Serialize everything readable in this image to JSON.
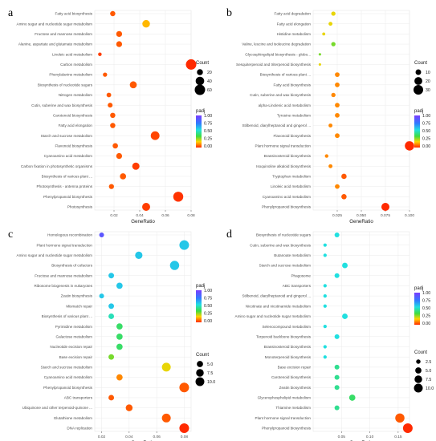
{
  "panels_label": [
    "a",
    "b",
    "c",
    "d"
  ],
  "legend_titles": {
    "count": "Count",
    "padj": "padj"
  },
  "chart_data": [
    {
      "type": "scatter",
      "panel": "a",
      "xlabel": "GeneRatio",
      "xlim": [
        0.005,
        0.08
      ],
      "xticks": [
        0.02,
        0.04,
        0.06,
        0.08
      ],
      "xtick_labels": [
        "0.02",
        "0.04",
        "0.06",
        "0.08"
      ],
      "categories": [
        "Fatty acid biosynthesis",
        "Amino sugar and nucleotide sugar metabolism",
        "Fructose and mannose metabolism",
        "Alanine, aspartate and glutamate metabolism",
        "Linoleic acid metabolism",
        "Carbon metabolism",
        "Phenylalanine metabolism",
        "Biosynthesis of nucleotide sugars",
        "Nitrogen metabolism",
        "Cutin, suberine and wax biosynthesis",
        "Carotenoid biosynthesis",
        "Fatty acid elongation",
        "Starch and sucrose metabolism",
        "Flavonoid biosynthesis",
        "Cyanoamino acid metabolism",
        "Carbon fixation in photosynthetic organisms",
        "Biosynthesis of various plant ...",
        "Photosynthesis - antenna proteins",
        "Phenylpropanoid biosynthesis",
        "Photosynthesis"
      ],
      "gene_ratio": [
        0.019,
        0.045,
        0.024,
        0.024,
        0.009,
        0.08,
        0.013,
        0.035,
        0.016,
        0.017,
        0.019,
        0.019,
        0.052,
        0.021,
        0.024,
        0.037,
        0.027,
        0.018,
        0.07,
        0.045
      ],
      "count": [
        15,
        32,
        19,
        19,
        7,
        60,
        10,
        27,
        12,
        13,
        15,
        15,
        42,
        16,
        19,
        29,
        21,
        14,
        55,
        35
      ],
      "padj": [
        0.05,
        0.15,
        0.05,
        0.05,
        0.02,
        0.0,
        0.05,
        0.05,
        0.05,
        0.05,
        0.05,
        0.05,
        0.03,
        0.05,
        0.05,
        0.02,
        0.05,
        0.05,
        0.01,
        0.02
      ],
      "count_legend": [
        20,
        40,
        60
      ],
      "padj_legend": [
        "1.00",
        "0.75",
        "0.50",
        "0.25",
        "0.00"
      ]
    },
    {
      "type": "scatter",
      "panel": "b",
      "xlabel": "GeneRatio",
      "xlim": [
        0.0,
        0.1
      ],
      "xticks": [
        0.025,
        0.05,
        0.075,
        0.1
      ],
      "xtick_labels": [
        "0.025",
        "0.050",
        "0.075",
        "0.100"
      ],
      "categories": [
        "Fatty acid degradation",
        "Fatty acid elongation",
        "Histidine metabolism",
        "Valine, leucine and isoleucine degradation",
        "Glycosphingolipid biosynthesis - globo...",
        "Sesquiterpenoid and triterpenoid biosynthesis",
        "Biosynthesis of various plant ...",
        "Fatty acid biosynthesis",
        "Cutin, suberine and wax biosynthesis",
        "alpha-Linolenic acid metabolism",
        "Tyrosine metabolism",
        "Stilbenoid, diarylheptanoid and gingerol ...",
        "Flavonoid biosynthesis",
        "Plant hormone signal transduction",
        "Brassinosteroid biosynthesis",
        "Isoquinoline alkaloid biosynthesis",
        "Tryptophan metabolism",
        "Linoleic acid metabolism",
        "Cyanoamino acid metabolism",
        "Phenylpropanoid biosynthesis"
      ],
      "gene_ratio": [
        0.021,
        0.018,
        0.011,
        0.021,
        0.007,
        0.007,
        0.025,
        0.025,
        0.021,
        0.025,
        0.025,
        0.018,
        0.025,
        0.1,
        0.014,
        0.018,
        0.032,
        0.025,
        0.032,
        0.075
      ],
      "count": [
        6,
        5,
        3,
        6,
        2,
        2,
        7,
        7,
        6,
        7,
        7,
        5,
        7,
        28,
        4,
        5,
        9,
        7,
        9,
        21
      ],
      "padj": [
        0.2,
        0.2,
        0.2,
        0.3,
        0.3,
        0.2,
        0.1,
        0.1,
        0.1,
        0.1,
        0.1,
        0.1,
        0.1,
        0.0,
        0.1,
        0.1,
        0.05,
        0.1,
        0.05,
        0.0
      ],
      "count_legend": [
        10,
        20,
        30
      ],
      "padj_legend": [
        "1.00",
        "0.75",
        "0.50",
        "0.25",
        "0.00"
      ]
    },
    {
      "type": "scatter",
      "panel": "c",
      "xlabel": "GeneRatio",
      "xlim": [
        0.015,
        0.085
      ],
      "xticks": [
        0.02,
        0.04,
        0.06,
        0.08
      ],
      "xtick_labels": [
        "0.02",
        "0.04",
        "0.06",
        "0.08"
      ],
      "categories": [
        "Homologous recombination",
        "Plant hormone signal transduction",
        "Amino sugar and nucleotide sugar metabolism",
        "Biosynthesis of cofactors",
        "Fructose and mannose metabolism",
        "Ribosome biogenesis in eukaryotes",
        "Zeatin biosynthesis",
        "Mismatch repair",
        "Biosynthesis of various plant ...",
        "Pyrimidine metabolism",
        "Galactose metabolism",
        "Nucleotide excision repair",
        "Base excision repair",
        "Starch and sucrose metabolism",
        "Cyanoamino acid metabolism",
        "Phenylpropanoid biosynthesis",
        "ABC transporters",
        "Ubiquinone and other terpenoid-quinone ...",
        "Glutathione metabolism",
        "DNA replication"
      ],
      "gene_ratio": [
        0.02,
        0.08,
        0.047,
        0.073,
        0.027,
        0.033,
        0.02,
        0.027,
        0.027,
        0.033,
        0.033,
        0.033,
        0.027,
        0.067,
        0.033,
        0.08,
        0.027,
        0.04,
        0.067,
        0.08
      ],
      "count": [
        3,
        12,
        7,
        11,
        4,
        5,
        3,
        4,
        4,
        5,
        5,
        5,
        4,
        10,
        5,
        12,
        4,
        6,
        10,
        12
      ],
      "padj": [
        0.9,
        0.6,
        0.6,
        0.6,
        0.6,
        0.6,
        0.6,
        0.6,
        0.5,
        0.4,
        0.4,
        0.4,
        0.3,
        0.2,
        0.1,
        0.05,
        0.05,
        0.05,
        0.05,
        0.0
      ],
      "count_legend": [
        "5.0",
        "7.5",
        "10.0"
      ],
      "padj_legend": [
        "1.00",
        "0.75",
        "0.50",
        "0.25",
        "0.00"
      ]
    },
    {
      "type": "scatter",
      "panel": "d",
      "xlabel": "GeneRatio",
      "xlim": [
        0.0,
        0.17
      ],
      "xticks": [
        0.05,
        0.1,
        0.15
      ],
      "xtick_labels": [
        "0.05",
        "0.10",
        "0.15"
      ],
      "categories": [
        "Biosynthesis of nucleotide sugars",
        "Cutin, suberine and wax biosynthesis",
        "Butanoate metabolism",
        "Starch and sucrose metabolism",
        "Phagosome",
        "ABC transporters",
        "Stilbenoid, diarylheptanoid and gingerol ...",
        "Nicotinate and nicotinamide metabolism",
        "Amino sugar and nucleotide sugar metabolism",
        "Selenocompound metabolism",
        "Terpenoid backbone biosynthesis",
        "Brassinosteroid biosynthesis",
        "Monoterpenoid biosynthesis",
        "Base excision repair",
        "Carotenoid biosynthesis",
        "Zeatin biosynthesis",
        "Glycerophospholipid metabolism",
        "Thiamine metabolism",
        "Plant hormone signal transduction",
        "Phenylpropanoid biosynthesis"
      ],
      "gene_ratio": [
        0.042,
        0.021,
        0.021,
        0.056,
        0.042,
        0.021,
        0.021,
        0.021,
        0.056,
        0.021,
        0.042,
        0.021,
        0.021,
        0.042,
        0.042,
        0.042,
        0.069,
        0.042,
        0.153,
        0.167
      ],
      "count": [
        3,
        1.5,
        1.5,
        4,
        3,
        1.5,
        1.5,
        1.5,
        4,
        1.5,
        3,
        1.5,
        1.5,
        3,
        3,
        3,
        5,
        3,
        11,
        12
      ],
      "padj": [
        0.55,
        0.55,
        0.55,
        0.55,
        0.55,
        0.55,
        0.55,
        0.55,
        0.55,
        0.55,
        0.55,
        0.55,
        0.55,
        0.45,
        0.45,
        0.45,
        0.4,
        0.45,
        0.05,
        0.0
      ],
      "count_legend": [
        "2.5",
        "5.0",
        "7.5",
        "10.0"
      ],
      "padj_legend": [
        "1.00",
        "0.75",
        "0.50",
        "0.25",
        "0.00"
      ]
    }
  ]
}
